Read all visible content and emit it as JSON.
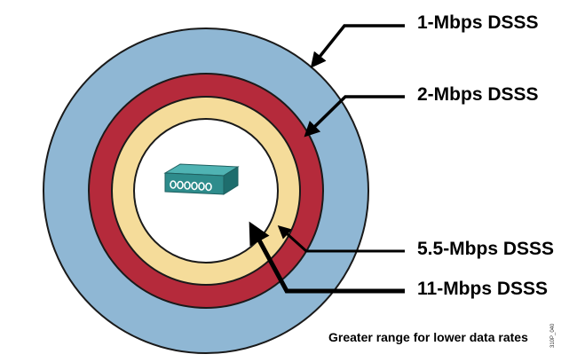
{
  "rings": [
    {
      "label": "1-Mbps DSSS",
      "color": "#8FB7D4"
    },
    {
      "label": "2-Mbps DSSS",
      "color": "#B52A3B"
    },
    {
      "label": "5.5-Mbps DSSS",
      "color": "#F5DC9A"
    },
    {
      "label": "11-Mbps DSSS",
      "color": "#FFFFFF"
    }
  ],
  "caption": "Greater range for lower data rates",
  "figure_ref": "310P_040",
  "device_icon": "access-point-icon",
  "device_color": "#2E8C8C"
}
